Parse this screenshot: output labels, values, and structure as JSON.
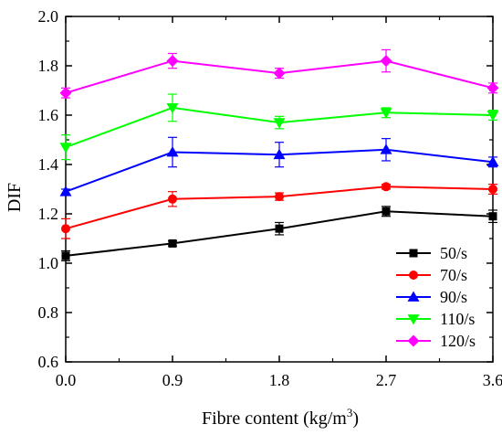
{
  "chart_data": {
    "type": "line",
    "title": "",
    "xlabel": "Fibre content (kg/m",
    "xlabel_sup": "3",
    "xlabel_suffix": ")",
    "ylabel": "DIF",
    "x": [
      0.0,
      0.9,
      1.8,
      2.7,
      3.6
    ],
    "x_tick_labels": [
      "0.0",
      "0.9",
      "1.8",
      "2.7",
      "3.6"
    ],
    "xlim": [
      0.0,
      3.6
    ],
    "ylim": [
      0.6,
      2.0
    ],
    "y_ticks": [
      0.6,
      0.8,
      1.0,
      1.2,
      1.4,
      1.6,
      1.8,
      2.0
    ],
    "y_tick_labels": [
      "0.6",
      "0.8",
      "1.0",
      "1.2",
      "1.4",
      "1.6",
      "1.8",
      "2.0"
    ],
    "grid": false,
    "legend_position": "bottom-right",
    "series": [
      {
        "name": "50/s",
        "color": "#000000",
        "marker": "square",
        "values": [
          1.03,
          1.08,
          1.14,
          1.21,
          1.19
        ],
        "errors": [
          0.02,
          0.01,
          0.025,
          0.02,
          0.025
        ]
      },
      {
        "name": "70/s",
        "color": "#ff0000",
        "marker": "circle",
        "values": [
          1.14,
          1.26,
          1.27,
          1.31,
          1.3
        ],
        "errors": [
          0.04,
          0.03,
          0.015,
          0.01,
          0.02
        ]
      },
      {
        "name": "90/s",
        "color": "#0000ff",
        "marker": "triangle-up",
        "values": [
          1.29,
          1.45,
          1.44,
          1.46,
          1.41
        ],
        "errors": [
          0.01,
          0.06,
          0.05,
          0.045,
          0.02
        ]
      },
      {
        "name": "110/s",
        "color": "#00ff00",
        "marker": "triangle-down",
        "values": [
          1.47,
          1.63,
          1.57,
          1.61,
          1.6
        ],
        "errors": [
          0.05,
          0.055,
          0.025,
          0.02,
          0.02
        ]
      },
      {
        "name": "120/s",
        "color": "#ff00ff",
        "marker": "diamond",
        "values": [
          1.69,
          1.82,
          1.77,
          1.82,
          1.71
        ],
        "errors": [
          0.02,
          0.03,
          0.02,
          0.045,
          0.02
        ]
      }
    ]
  }
}
